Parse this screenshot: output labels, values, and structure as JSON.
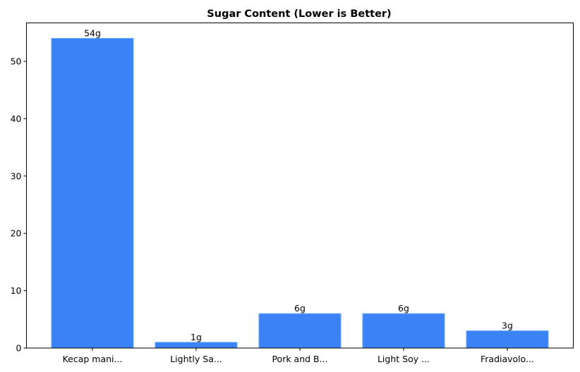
{
  "chart_data": {
    "type": "bar",
    "title": "Sugar Content (Lower is Better)",
    "xlabel": "",
    "ylabel": "",
    "categories": [
      "Kecap mani...",
      "Lightly Sa...",
      "Pork and B...",
      "Light Soy ...",
      "Fradiavolo..."
    ],
    "values": [
      54,
      1,
      6,
      6,
      3
    ],
    "value_labels": [
      "54g",
      "1g",
      "6g",
      "6g",
      "3g"
    ],
    "ylim": [
      0,
      56.7
    ],
    "yticks": [
      0,
      10,
      20,
      30,
      40,
      50
    ],
    "grid": false,
    "legend": null,
    "bar_color": "#3b82f6",
    "bar_edge_color": "#60a5fa"
  }
}
